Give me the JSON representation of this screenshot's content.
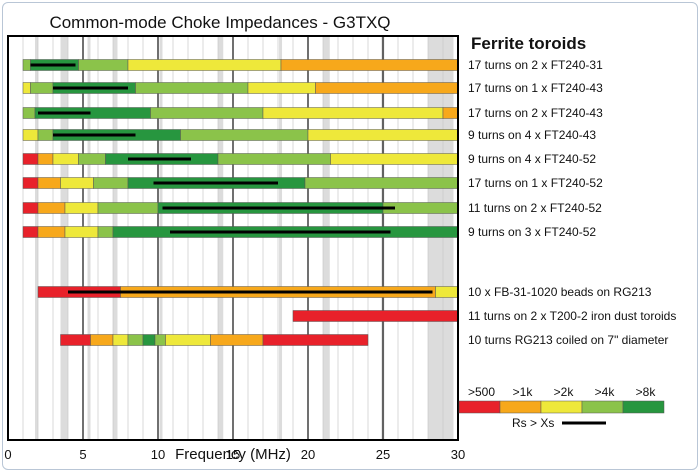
{
  "chart_data": {
    "type": "bar",
    "title": "Common-mode Choke Impedances - G3TXQ",
    "legend_title": "Ferrite toroids",
    "xlabel": "Frequency (MHz)",
    "xlim": [
      0,
      30
    ],
    "x_ticks": [
      "0",
      "5",
      "10",
      "15",
      "20",
      "25",
      "30"
    ],
    "shaded_bands": [
      [
        1.8,
        2.0
      ],
      [
        3.5,
        4.0
      ],
      [
        5.3,
        5.4
      ],
      [
        7.0,
        7.3
      ],
      [
        10.1,
        10.15
      ],
      [
        14.0,
        14.35
      ],
      [
        18.07,
        18.17
      ],
      [
        21.0,
        21.45
      ],
      [
        24.89,
        24.99
      ],
      [
        28.0,
        29.7
      ]
    ],
    "colors": {
      "r": "#e8212a",
      "o": "#f7a81b",
      "y": "#eee83a",
      "lg": "#8bc34a",
      "dg": "#27963f",
      "line": "#000000"
    },
    "impedance_legend": [
      {
        "label": ">500",
        "color": "r"
      },
      {
        "label": ">1k",
        "color": "o"
      },
      {
        "label": ">2k",
        "color": "y"
      },
      {
        "label": ">4k",
        "color": "lg"
      },
      {
        "label": ">8k",
        "color": "dg"
      }
    ],
    "rs_xs_label": "Rs > Xs",
    "rows": [
      {
        "label": "17 turns on 2 x FT240-31",
        "segments": [
          [
            1,
            1.5,
            "lg"
          ],
          [
            1.5,
            4.7,
            "dg"
          ],
          [
            4.7,
            8,
            "lg"
          ],
          [
            8,
            18.2,
            "y"
          ],
          [
            18.2,
            30,
            "o"
          ]
        ],
        "rs": [
          1.5,
          4.5
        ]
      },
      {
        "label": "17 turns on 1 x FT240-43",
        "segments": [
          [
            1,
            1.5,
            "y"
          ],
          [
            1.5,
            3,
            "lg"
          ],
          [
            3,
            8.5,
            "dg"
          ],
          [
            8.5,
            16,
            "lg"
          ],
          [
            16,
            20.5,
            "y"
          ],
          [
            20.5,
            30,
            "o"
          ]
        ],
        "rs": [
          3,
          8
        ]
      },
      {
        "label": "17 turns on 2 x FT240-43",
        "segments": [
          [
            1,
            1.8,
            "lg"
          ],
          [
            1.8,
            9.5,
            "dg"
          ],
          [
            9.5,
            17,
            "lg"
          ],
          [
            17,
            29,
            "y"
          ],
          [
            29,
            30,
            "o"
          ]
        ],
        "rs": [
          2,
          5.5
        ]
      },
      {
        "label": "9 turns on 4 x FT240-43",
        "segments": [
          [
            1,
            2,
            "y"
          ],
          [
            2,
            3,
            "lg"
          ],
          [
            3,
            11.5,
            "dg"
          ],
          [
            11.5,
            20,
            "lg"
          ],
          [
            20,
            30,
            "y"
          ]
        ],
        "rs": [
          3,
          8.5
        ]
      },
      {
        "label": "9 turns on 4 x FT240-52",
        "segments": [
          [
            1,
            2,
            "r"
          ],
          [
            2,
            3,
            "o"
          ],
          [
            3,
            4.7,
            "y"
          ],
          [
            4.7,
            6.5,
            "lg"
          ],
          [
            6.5,
            14,
            "dg"
          ],
          [
            14,
            21.5,
            "lg"
          ],
          [
            21.5,
            30,
            "y"
          ]
        ],
        "rs": [
          8,
          12.2
        ]
      },
      {
        "label": "17 turns on 1 x FT240-52",
        "segments": [
          [
            1,
            2,
            "r"
          ],
          [
            2,
            3.5,
            "o"
          ],
          [
            3.5,
            5.7,
            "y"
          ],
          [
            5.7,
            8,
            "lg"
          ],
          [
            8,
            19.8,
            "dg"
          ],
          [
            19.8,
            30,
            "lg"
          ]
        ],
        "rs": [
          9.7,
          18
        ]
      },
      {
        "label": "11 turns on 2 x FT240-52",
        "segments": [
          [
            1,
            2,
            "r"
          ],
          [
            2,
            3.8,
            "o"
          ],
          [
            3.8,
            6,
            "y"
          ],
          [
            6,
            10,
            "lg"
          ],
          [
            10,
            25,
            "dg"
          ],
          [
            25,
            30,
            "lg"
          ]
        ],
        "rs": [
          10.3,
          25.8
        ]
      },
      {
        "label": "9 turns on 3 x FT240-52",
        "segments": [
          [
            1,
            2,
            "r"
          ],
          [
            2,
            3.8,
            "o"
          ],
          [
            3.8,
            6,
            "y"
          ],
          [
            6,
            7,
            "lg"
          ],
          [
            7,
            30,
            "dg"
          ]
        ],
        "rs": [
          10.8,
          25.5
        ]
      },
      {
        "label": "10 x FB-31-1020 beads on RG213",
        "segments": [
          [
            2,
            7.5,
            "r"
          ],
          [
            7.5,
            28.5,
            "o"
          ],
          [
            28.5,
            30,
            "y"
          ]
        ],
        "rs": [
          4,
          28.3
        ]
      },
      {
        "label": "11 turns on 2 x T200-2 iron dust toroids",
        "segments": [
          [
            19,
            30,
            "r"
          ]
        ],
        "rs": null
      },
      {
        "label": "10 turns RG213 coiled on 7\" diameter",
        "segments": [
          [
            3.5,
            5.5,
            "r"
          ],
          [
            5.5,
            7,
            "o"
          ],
          [
            7,
            8,
            "y"
          ],
          [
            8,
            9,
            "lg"
          ],
          [
            9,
            9.8,
            "dg"
          ],
          [
            9.8,
            10.5,
            "lg"
          ],
          [
            10.5,
            13.5,
            "y"
          ],
          [
            13.5,
            17,
            "o"
          ],
          [
            17,
            24,
            "r"
          ]
        ],
        "rs": null
      }
    ]
  }
}
